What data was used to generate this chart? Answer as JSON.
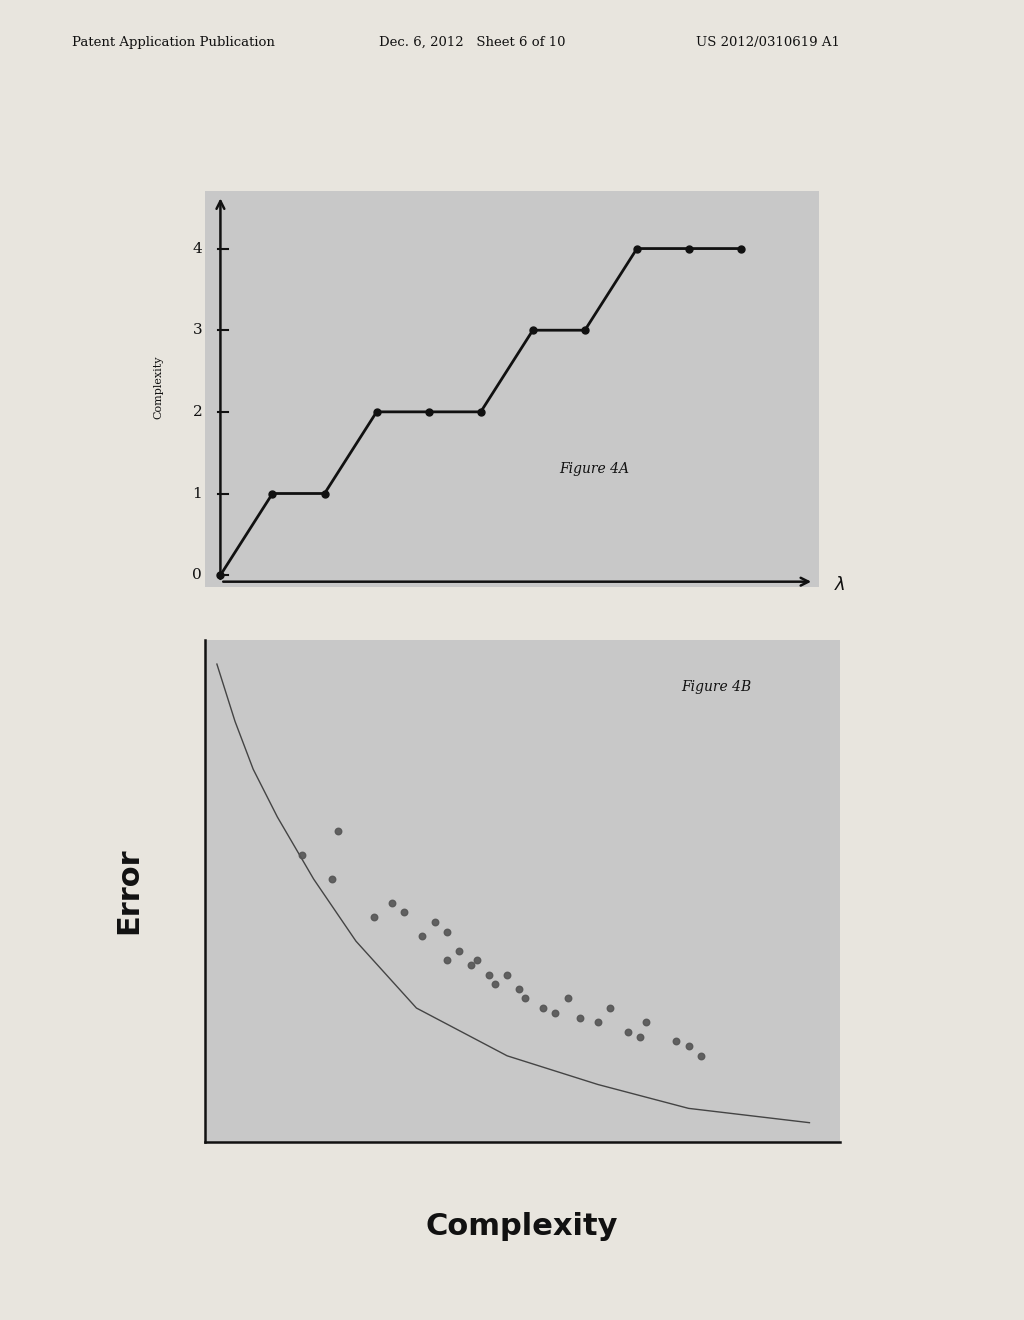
{
  "background_color": "#c8c8c8",
  "page_bg": "#e8e5de",
  "header_text_left": "Patent Application Publication",
  "header_text_mid": "Dec. 6, 2012   Sheet 6 of 10",
  "header_text_right": "US 2012/0310619 A1",
  "header_fontsize": 9.5,
  "fig4a": {
    "title": "Figure 4A",
    "xlabel": "λ",
    "ylabel": "Complexity",
    "x_data": [
      0,
      1,
      2,
      3,
      4,
      5,
      6,
      7,
      8,
      9,
      10
    ],
    "y_data": [
      0,
      1,
      1,
      2,
      2,
      2,
      3,
      3,
      4,
      4,
      4
    ],
    "yticks": [
      0,
      1,
      2,
      3,
      4
    ],
    "line_color": "#111111",
    "marker": "o",
    "marker_size": 5,
    "line_width": 2.0
  },
  "fig4b": {
    "title": "Figure 4B",
    "xlabel": "Complexity",
    "ylabel": "Error",
    "curve_x": [
      0.02,
      0.05,
      0.08,
      0.12,
      0.18,
      0.25,
      0.35,
      0.5,
      0.65,
      0.8,
      1.0
    ],
    "curve_y": [
      1.0,
      0.88,
      0.78,
      0.68,
      0.55,
      0.42,
      0.28,
      0.18,
      0.12,
      0.07,
      0.04
    ],
    "scatter_x": [
      0.16,
      0.21,
      0.22,
      0.28,
      0.31,
      0.33,
      0.36,
      0.38,
      0.4,
      0.4,
      0.42,
      0.44,
      0.45,
      0.47,
      0.48,
      0.5,
      0.52,
      0.53,
      0.56,
      0.58,
      0.6,
      0.62,
      0.65,
      0.67,
      0.7,
      0.72,
      0.73,
      0.78,
      0.8,
      0.82
    ],
    "scatter_y": [
      0.6,
      0.55,
      0.65,
      0.47,
      0.5,
      0.48,
      0.43,
      0.46,
      0.38,
      0.44,
      0.4,
      0.37,
      0.38,
      0.35,
      0.33,
      0.35,
      0.32,
      0.3,
      0.28,
      0.27,
      0.3,
      0.26,
      0.25,
      0.28,
      0.23,
      0.22,
      0.25,
      0.21,
      0.2,
      0.18
    ],
    "line_color": "#444444",
    "scatter_color": "#555555",
    "line_width": 1.0,
    "marker_size": 22
  }
}
